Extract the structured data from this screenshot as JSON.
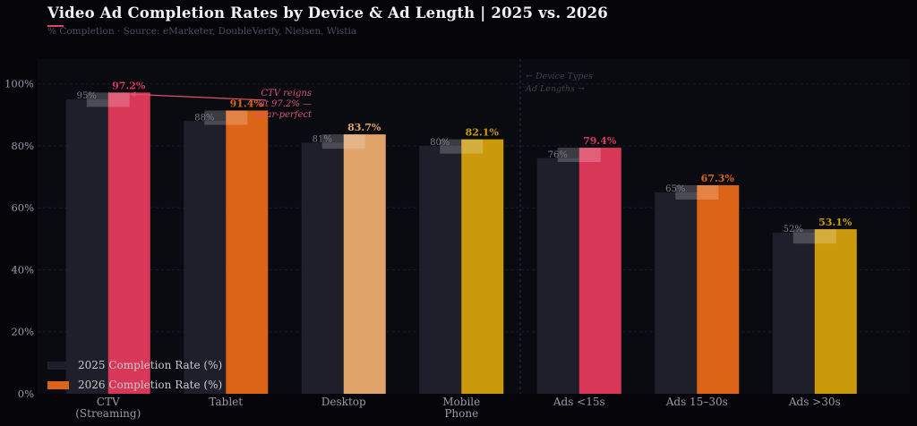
{
  "header": {
    "title": "Video Ad Completion Rates by Device & Ad Length  |  2025 vs. 2026",
    "subtitle": "% Completion  ·  Source: eMarketer, DoubleVerify, Nielsen, Wistia"
  },
  "colors": {
    "background": "#050509",
    "plot_background": "#0a0b11",
    "bar_2025": "#1f1f2c",
    "pink": "#d93758",
    "orange": "#dc6417",
    "peach": "#e0a36a",
    "gold": "#ca9a0c"
  },
  "chart_data": {
    "type": "bar",
    "categories": [
      [
        "CTV",
        "(Streaming)"
      ],
      [
        "Tablet"
      ],
      [
        "Desktop"
      ],
      [
        "Mobile",
        "Phone"
      ],
      [
        "Ads <15s"
      ],
      [
        "Ads 15–30s"
      ],
      [
        "Ads >30s"
      ]
    ],
    "series": [
      {
        "name": "2025 Completion Rate (%)",
        "values": [
          95,
          88,
          81,
          80,
          76,
          65,
          52
        ],
        "labels": [
          "95%",
          "88%",
          "81%",
          "80%",
          "76%",
          "65%",
          "52%"
        ]
      },
      {
        "name": "2026 Completion Rate (%)",
        "values": [
          97.2,
          91.4,
          83.7,
          82.1,
          79.4,
          67.3,
          53.1
        ],
        "labels": [
          "97.2%",
          "91.4%",
          "83.7%",
          "82.1%",
          "79.4%",
          "67.3%",
          "53.1%"
        ],
        "colors": [
          "pink",
          "orange",
          "peach",
          "gold",
          "pink",
          "orange",
          "gold"
        ]
      }
    ],
    "ylim": [
      0,
      108
    ],
    "yticks": [
      0,
      20,
      40,
      60,
      80,
      100
    ],
    "ytick_labels": [
      "0%",
      "20%",
      "40%",
      "60%",
      "80%",
      "100%"
    ],
    "grid": true,
    "legend": "bottom-left",
    "annotation": {
      "lines": [
        "CTV reigns",
        "at 97.2% —",
        "near-perfect"
      ],
      "points_to": "CTV 2026"
    },
    "divider": {
      "after_category": 3,
      "lines": [
        "← Device Types",
        "Ad Lengths →"
      ]
    }
  }
}
